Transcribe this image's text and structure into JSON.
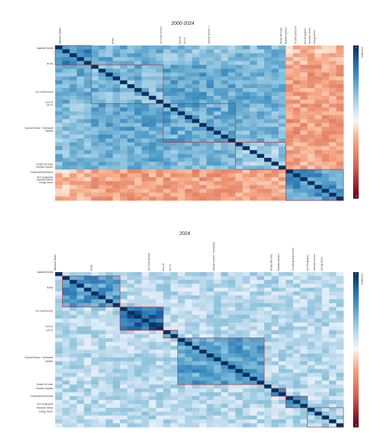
{
  "colors": {
    "negative": "#67001f",
    "neutral": "#ffffff",
    "positive": "#053061",
    "block_outline": "#c0282d"
  },
  "chart_data": [
    {
      "type": "heatmap",
      "title": "2000-2024",
      "n": 40,
      "colorbar": {
        "label": "Correlation",
        "min_label": "-1",
        "max_label": "1"
      },
      "groups": [
        {
          "start": 0,
          "size": 5,
          "base": 0.65
        },
        {
          "start": 5,
          "size": 10,
          "base": 0.42
        },
        {
          "start": 15,
          "size": 10,
          "base": 0.48
        },
        {
          "start": 25,
          "size": 7,
          "base": 0.32
        },
        {
          "start": 32,
          "size": 8,
          "base": 0.55
        }
      ],
      "cross": [
        {
          "a": 0,
          "b": 1,
          "v": 0.45
        },
        {
          "a": 0,
          "b": 2,
          "v": 0.38
        },
        {
          "a": 0,
          "b": 3,
          "v": 0.4
        },
        {
          "a": 1,
          "b": 2,
          "v": 0.5
        },
        {
          "a": 1,
          "b": 3,
          "v": 0.46
        },
        {
          "a": 2,
          "b": 3,
          "v": 0.42
        },
        {
          "a": 0,
          "b": 4,
          "v": -0.18
        },
        {
          "a": 1,
          "b": 4,
          "v": -0.28
        },
        {
          "a": 2,
          "b": 4,
          "v": -0.3
        },
        {
          "a": 3,
          "b": 4,
          "v": -0.24
        }
      ],
      "row_labels": [
        {
          "row": 1,
          "text": "Japanese Bonds"
        },
        {
          "row": 7,
          "text": "Bonds"
        },
        {
          "row": 18,
          "text": "US Credit Sectors"
        },
        {
          "row": 22,
          "text": "Euro IG"
        },
        {
          "row": 23,
          "text": "US HY"
        },
        {
          "row": 32,
          "text": "Cyclical Sectors + Developed"
        },
        {
          "row": 33,
          "text": "Equities"
        },
        {
          "row": 46,
          "text": "Global 100 Index"
        },
        {
          "row": 47,
          "text": "Brazilian Equities"
        },
        {
          "row": 49,
          "text": "Countercyclical Sectors"
        },
        {
          "row": 51,
          "text": "Non Geographic"
        },
        {
          "row": 52,
          "text": "Insurance Sector"
        },
        {
          "row": 53,
          "text": "Energy Sector"
        }
      ],
      "col_labels": [
        {
          "col": 1,
          "text": "Japanese Bonds"
        },
        {
          "col": 12,
          "text": "Bonds"
        },
        {
          "col": 22,
          "text": "US Credit Sectors"
        },
        {
          "col": 26,
          "text": "Euro IG"
        },
        {
          "col": 27,
          "text": "US HY"
        },
        {
          "col": 32,
          "text": "Cyclical Sectors + I"
        },
        {
          "col": 47,
          "text": "Global 100 Index"
        },
        {
          "col": 48,
          "text": "Brazilian Equities"
        },
        {
          "col": 50,
          "text": "Countercyclical Se"
        },
        {
          "col": 52,
          "text": "Non Geographic"
        },
        {
          "col": 53,
          "text": "Insurance Sector"
        },
        {
          "col": 54,
          "text": "Energy Sector"
        }
      ]
    },
    {
      "type": "heatmap",
      "title": "2024",
      "n": 40,
      "colorbar": {
        "label": "Correlation",
        "min_label": "-1",
        "max_label": "1"
      },
      "groups": [
        {
          "start": 0,
          "size": 1,
          "base": 1.0
        },
        {
          "start": 1,
          "size": 8,
          "base": 0.55
        },
        {
          "start": 9,
          "size": 6,
          "base": 0.78
        },
        {
          "start": 15,
          "size": 2,
          "base": 0.6
        },
        {
          "start": 17,
          "size": 12,
          "base": 0.52
        },
        {
          "start": 29,
          "size": 1,
          "base": 1.0
        },
        {
          "start": 30,
          "size": 2,
          "base": 0.5
        },
        {
          "start": 32,
          "size": 3,
          "base": 0.48
        },
        {
          "start": 35,
          "size": 5,
          "base": 0.3
        }
      ],
      "cross": [],
      "row_labels": [
        {
          "row": 0,
          "text": "Japanese Bonds"
        },
        {
          "row": 4,
          "text": "Bonds"
        },
        {
          "row": 10,
          "text": "US Credit Sectors"
        },
        {
          "row": 14,
          "text": "Euro IG"
        },
        {
          "row": 15,
          "text": "US HY"
        },
        {
          "row": 22,
          "text": "Cyclical Sectors + Developed"
        },
        {
          "row": 23,
          "text": "Equities"
        },
        {
          "row": 29,
          "text": "Global 100 Index"
        },
        {
          "row": 30,
          "text": "Brazilian Equities"
        },
        {
          "row": 32,
          "text": "Countercyclical Sectors"
        },
        {
          "row": 34,
          "text": "Non Geographic"
        },
        {
          "row": 35,
          "text": "Insurance Sector"
        },
        {
          "row": 36,
          "text": "Energy Sector"
        }
      ],
      "col_labels": [
        {
          "col": 0,
          "text": "Japanese Bonds"
        },
        {
          "col": 5,
          "text": "Bonds"
        },
        {
          "col": 13,
          "text": "US Credit Sectors"
        },
        {
          "col": 15,
          "text": "Euro IG"
        },
        {
          "col": 16,
          "text": "US HY"
        },
        {
          "col": 22,
          "text": "Cyclical Sectors + Developed"
        },
        {
          "col": 30,
          "text": "Global 100 Index"
        },
        {
          "col": 31,
          "text": "Brazilian Equities"
        },
        {
          "col": 33,
          "text": "Countercyclical Sectors"
        },
        {
          "col": 35,
          "text": "Non Geographic"
        },
        {
          "col": 36,
          "text": "Insurance Sector"
        },
        {
          "col": 37,
          "text": "Energy Sector"
        }
      ]
    }
  ]
}
